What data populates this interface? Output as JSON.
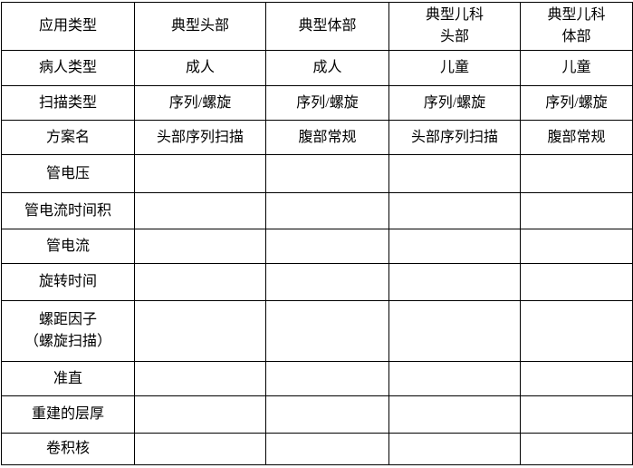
{
  "table": {
    "header": {
      "col0": "应用类型",
      "col1": "典型头部",
      "col2": "典型体部",
      "col3": "典型儿科\n头部",
      "col4": "典型儿科\n体部"
    },
    "rows": [
      {
        "label": "病人类型",
        "values": [
          "成人",
          "成人",
          "儿童",
          "儿童"
        ]
      },
      {
        "label": "扫描类型",
        "values": [
          "序列/螺旋",
          "序列/螺旋",
          "序列/螺旋",
          "序列/螺旋"
        ]
      },
      {
        "label": "方案名",
        "values": [
          "头部序列扫描",
          "腹部常规",
          "头部序列扫描",
          "腹部常规"
        ]
      },
      {
        "label": "管电压",
        "values": [
          "",
          "",
          "",
          ""
        ]
      },
      {
        "label": "管电流时间积",
        "values": [
          "",
          "",
          "",
          ""
        ]
      },
      {
        "label": "管电流",
        "values": [
          "",
          "",
          "",
          ""
        ]
      },
      {
        "label": "旋转时间",
        "values": [
          "",
          "",
          "",
          ""
        ]
      },
      {
        "label": "螺距因子\n（螺旋扫描）",
        "values": [
          "",
          "",
          "",
          ""
        ]
      },
      {
        "label": "准直",
        "values": [
          "",
          "",
          "",
          ""
        ]
      },
      {
        "label": "重建的层厚",
        "values": [
          "",
          "",
          "",
          ""
        ]
      },
      {
        "label": "卷积核",
        "values": [
          "",
          "",
          "",
          ""
        ]
      }
    ]
  }
}
